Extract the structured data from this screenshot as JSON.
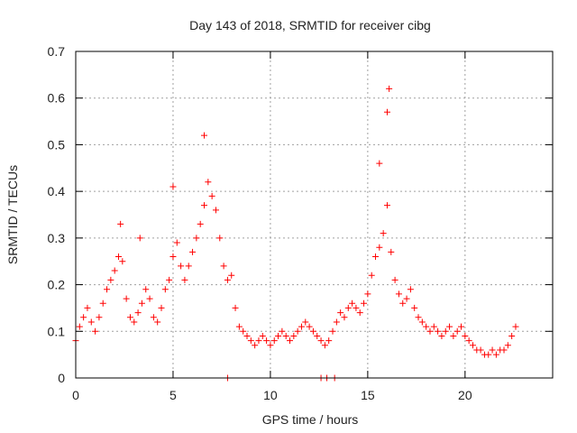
{
  "chart_data": {
    "type": "scatter",
    "title": "Day 143 of 2018, SRMTID for receiver cibg",
    "xlabel": "GPS time / hours",
    "ylabel": "SRMTID / TECUs",
    "xlim": [
      0,
      24.5
    ],
    "ylim": [
      0,
      0.7
    ],
    "xticks": [
      0,
      5,
      10,
      15,
      20
    ],
    "xtick_labels": [
      "0",
      "5",
      "10",
      "15",
      "20"
    ],
    "yticks": [
      0,
      0.1,
      0.2,
      0.3,
      0.4,
      0.5,
      0.6,
      0.7
    ],
    "ytick_labels": [
      "0",
      "0.1",
      "0.2",
      "0.3",
      "0.4",
      "0.5",
      "0.6",
      "0.7"
    ],
    "grid": true,
    "marker": "plus",
    "color": "#ff0000",
    "zero_points_x": [
      7.8,
      12.6,
      12.9,
      13.3
    ],
    "series": [
      {
        "name": "SRMTID",
        "x": [
          0.0,
          0.2,
          0.4,
          0.6,
          0.8,
          1.0,
          1.2,
          1.4,
          1.6,
          1.8,
          2.0,
          2.2,
          2.4,
          2.6,
          2.8,
          3.0,
          3.2,
          3.4,
          3.6,
          3.8,
          4.0,
          4.2,
          4.4,
          4.6,
          4.8,
          5.0,
          5.2,
          5.4,
          5.6,
          5.8,
          6.0,
          6.2,
          6.4,
          6.6,
          6.8,
          7.0,
          7.2,
          7.4,
          7.6,
          7.8,
          8.0,
          8.2,
          8.4,
          8.6,
          8.8,
          9.0,
          9.2,
          9.4,
          9.6,
          9.8,
          10.0,
          10.2,
          10.4,
          10.6,
          10.8,
          11.0,
          11.2,
          11.4,
          11.6,
          11.8,
          12.0,
          12.2,
          12.4,
          12.6,
          12.8,
          13.0,
          13.2,
          13.4,
          13.6,
          13.8,
          14.0,
          14.2,
          14.4,
          14.6,
          14.8,
          15.0,
          15.2,
          15.4,
          15.6,
          15.8,
          16.0,
          16.2,
          16.4,
          16.6,
          16.8,
          17.0,
          17.2,
          17.4,
          17.6,
          17.8,
          18.0,
          18.2,
          18.4,
          18.6,
          18.8,
          19.0,
          19.2,
          19.4,
          19.6,
          19.8,
          20.0,
          20.2,
          20.4,
          20.6,
          20.8,
          21.0,
          21.2,
          21.4,
          21.6,
          21.8,
          22.0,
          22.2,
          22.4,
          22.6
        ],
        "y": [
          0.08,
          0.11,
          0.13,
          0.15,
          0.12,
          0.1,
          0.13,
          0.16,
          0.19,
          0.21,
          0.23,
          0.26,
          0.25,
          0.17,
          0.13,
          0.12,
          0.14,
          0.16,
          0.19,
          0.17,
          0.13,
          0.12,
          0.15,
          0.19,
          0.21,
          0.26,
          0.29,
          0.24,
          0.21,
          0.24,
          0.27,
          0.3,
          0.33,
          0.37,
          0.42,
          0.39,
          0.36,
          0.3,
          0.24,
          0.21,
          0.22,
          0.15,
          0.11,
          0.1,
          0.09,
          0.08,
          0.07,
          0.08,
          0.09,
          0.08,
          0.07,
          0.08,
          0.09,
          0.1,
          0.09,
          0.08,
          0.09,
          0.1,
          0.11,
          0.12,
          0.11,
          0.1,
          0.09,
          0.08,
          0.07,
          0.08,
          0.1,
          0.12,
          0.14,
          0.13,
          0.15,
          0.16,
          0.15,
          0.14,
          0.16,
          0.18,
          0.22,
          0.26,
          0.28,
          0.31,
          0.37,
          0.27,
          0.21,
          0.18,
          0.16,
          0.17,
          0.19,
          0.15,
          0.13,
          0.12,
          0.11,
          0.1,
          0.11,
          0.1,
          0.09,
          0.1,
          0.11,
          0.09,
          0.1,
          0.11,
          0.09,
          0.08,
          0.07,
          0.06,
          0.06,
          0.05,
          0.05,
          0.06,
          0.05,
          0.06,
          0.06,
          0.07,
          0.09,
          0.11
        ]
      }
    ],
    "peaks": [
      {
        "x": 6.6,
        "y": 0.52
      },
      {
        "x": 5.0,
        "y": 0.41
      },
      {
        "x": 16.1,
        "y": 0.62
      },
      {
        "x": 16.0,
        "y": 0.57
      },
      {
        "x": 15.6,
        "y": 0.46
      },
      {
        "x": 2.3,
        "y": 0.33
      },
      {
        "x": 3.3,
        "y": 0.3
      }
    ]
  }
}
